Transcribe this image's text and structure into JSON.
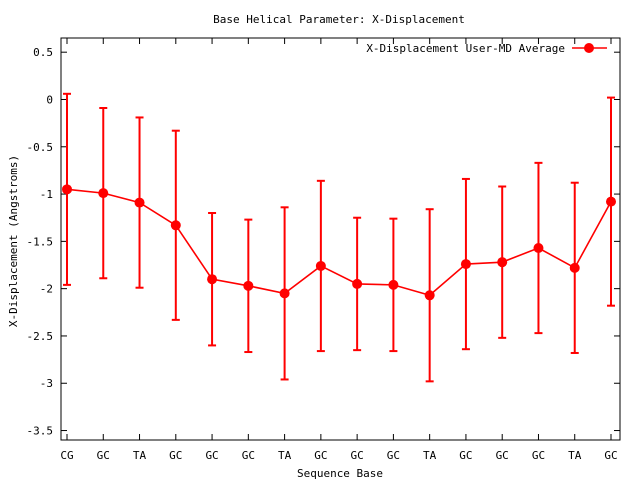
{
  "chart_data": {
    "type": "line",
    "title": "Base  Helical Parameter: X-Displacement",
    "xlabel": "Sequence Base",
    "ylabel": "X-Displacement (Angstroms)",
    "categories": [
      "CG",
      "GC",
      "TA",
      "GC",
      "GC",
      "GC",
      "TA",
      "GC",
      "GC",
      "GC",
      "TA",
      "GC",
      "GC",
      "GC",
      "TA",
      "GC"
    ],
    "ylim": [
      -3.6,
      0.65
    ],
    "yticks": [
      0.5,
      0,
      -0.5,
      -1,
      -1.5,
      -2,
      -2.5,
      -3,
      -3.5
    ],
    "ytick_labels": [
      "0.5",
      "0",
      "-0.5",
      "-1",
      "-1.5",
      "-2",
      "-2.5",
      "-3",
      "-3.5"
    ],
    "grid": false,
    "legend_position": "top-right",
    "series": [
      {
        "name": "X-Displacement User-MD Average",
        "color": "#ff0000",
        "values": [
          -0.95,
          -0.99,
          -1.09,
          -1.33,
          -1.9,
          -1.97,
          -2.05,
          -1.76,
          -1.95,
          -1.96,
          -2.07,
          -1.74,
          -1.72,
          -1.57,
          -1.78,
          -1.08
        ],
        "error": [
          1.01,
          0.9,
          0.9,
          1.0,
          0.7,
          0.7,
          0.91,
          0.9,
          0.7,
          0.7,
          0.91,
          0.9,
          0.8,
          0.9,
          0.9,
          1.1
        ]
      }
    ]
  }
}
